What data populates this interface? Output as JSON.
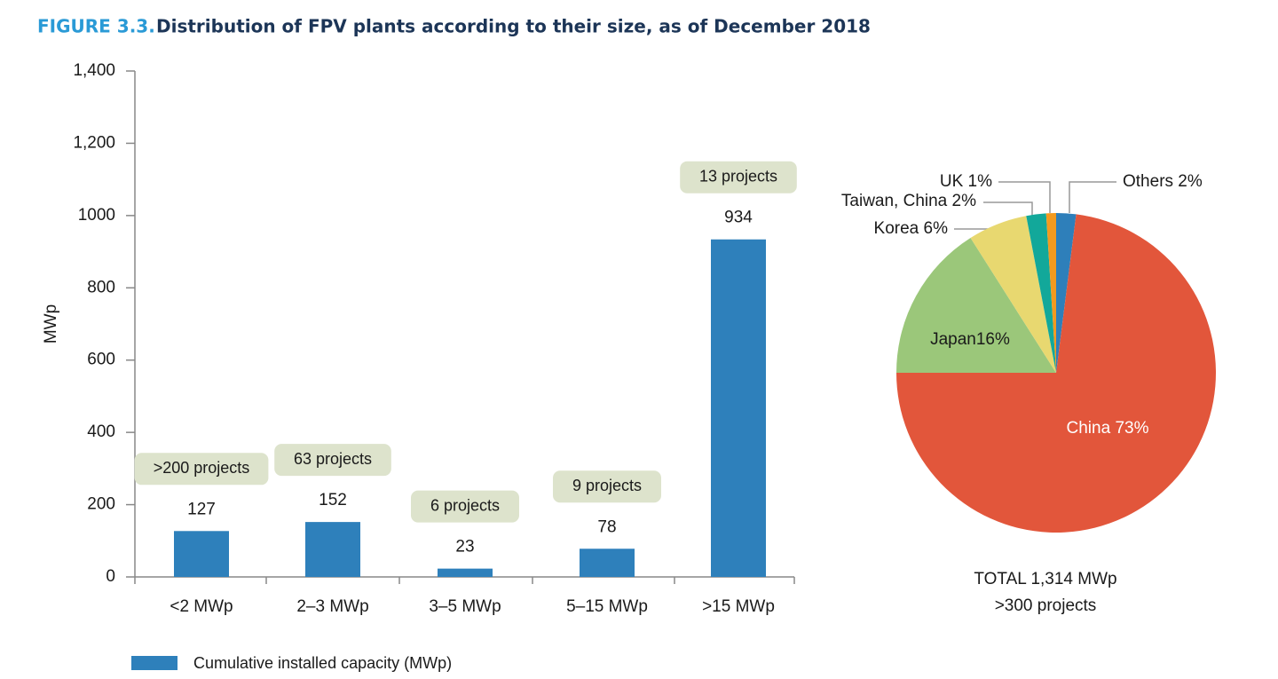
{
  "chart_data": [
    {
      "type": "bar",
      "figure_label": "FIGURE 3.3.",
      "title": "Distribution of FPV plants according to their size, as of December 2018",
      "y_label": "MWp",
      "categories": [
        "<2 MWp",
        "2–3 MWp",
        "3–5 MWp",
        "5–15 MWp",
        ">15 MWp"
      ],
      "series": [
        {
          "name": "Cumulative installed capacity (MWp)",
          "color": "#2e80bb",
          "values": [
            127,
            152,
            23,
            78,
            934
          ]
        }
      ],
      "annotations": [
        ">200 projects",
        "63 projects",
        "6 projects",
        "9 projects",
        "13 projects"
      ],
      "ylim": [
        0,
        1400
      ],
      "yticks": [
        0,
        200,
        400,
        600,
        800,
        1000,
        {
          "value": 1200,
          "label": "1,200"
        },
        {
          "value": 1400,
          "label": "1,400"
        }
      ],
      "grid": false
    },
    {
      "type": "pie",
      "values": [
        2,
        73,
        16,
        6,
        2,
        1
      ],
      "value_labels": [
        "Others 2%",
        "China 73%",
        "Japan16%",
        "Korea 6%",
        "Taiwan, China 2%",
        "UK 1%"
      ],
      "colors": [
        "#2e7fba",
        "#e2563b",
        "#9bc77a",
        "#e8d870",
        "#12a89a",
        "#f39a1f"
      ],
      "notes": [
        "TOTAL 1,314 MWp",
        ">300 projects"
      ]
    }
  ]
}
